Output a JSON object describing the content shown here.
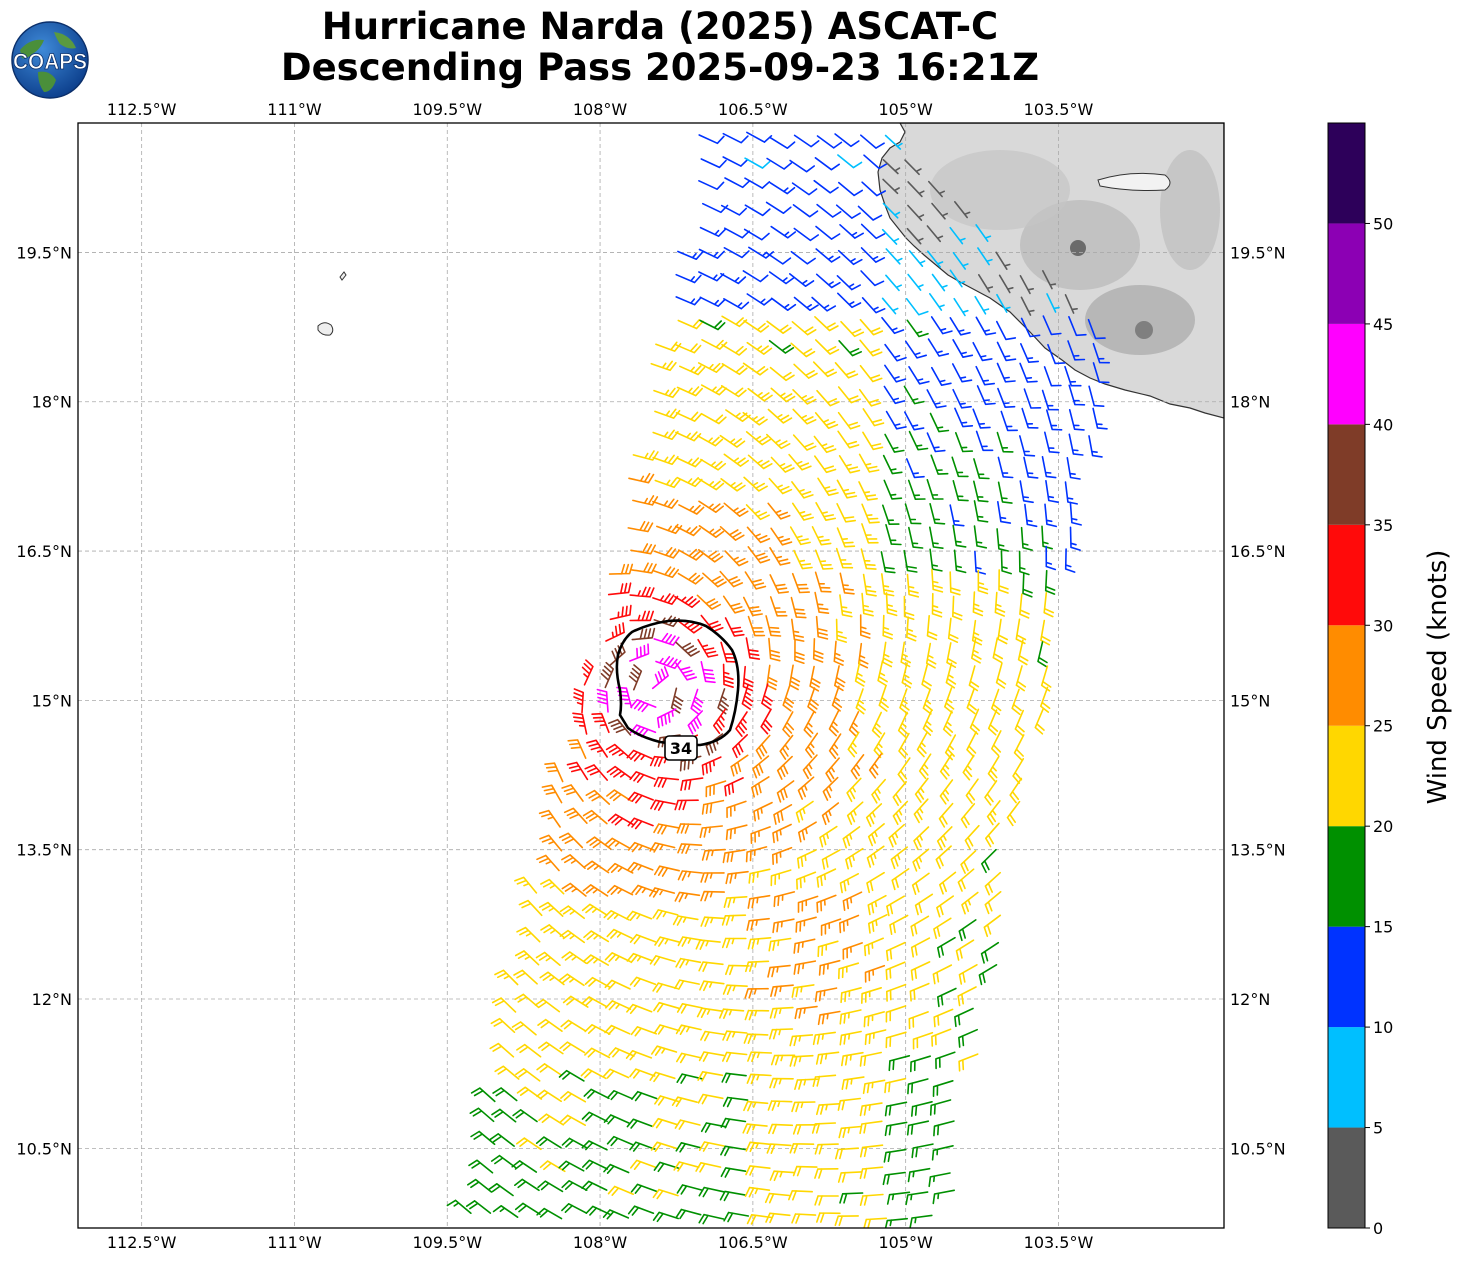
{
  "title": {
    "line1": "Hurricane Narda (2025) ASCAT-C",
    "line2": "Descending Pass 2025-09-23 16:21Z"
  },
  "logo": {
    "text": "COAPS",
    "icon": "globe-logo-icon"
  },
  "map": {
    "lon_range": [
      -113.125,
      -101.875
    ],
    "lat_range": [
      9.7,
      20.8
    ],
    "lon_ticks": [
      {
        "value": -112.5,
        "label": "112.5°W"
      },
      {
        "value": -111,
        "label": "111°W"
      },
      {
        "value": -109.5,
        "label": "109.5°W"
      },
      {
        "value": -108,
        "label": "108°W"
      },
      {
        "value": -106.5,
        "label": "106.5°W"
      },
      {
        "value": -105,
        "label": "105°W"
      },
      {
        "value": -103.5,
        "label": "103.5°W"
      }
    ],
    "lat_ticks": [
      {
        "value": 19.5,
        "label": "19.5°N"
      },
      {
        "value": 18,
        "label": "18°N"
      },
      {
        "value": 16.5,
        "label": "16.5°N"
      },
      {
        "value": 15,
        "label": "15°N"
      },
      {
        "value": 13.5,
        "label": "13.5°N"
      },
      {
        "value": 12,
        "label": "12°N"
      },
      {
        "value": 10.5,
        "label": "10.5°N"
      }
    ],
    "grid": "dashed",
    "storm_center": {
      "lon": -107.45,
      "lat": 15.1
    },
    "wind_radius_label": "34",
    "wind_radius_34kt_nm_approx": 65
  },
  "colorbar": {
    "label": "Wind Speed (knots)",
    "ticks": [
      "0",
      "5",
      "10",
      "15",
      "20",
      "25",
      "30",
      "35",
      "40",
      "45",
      "50"
    ],
    "bins": [
      {
        "min": 0,
        "max": 5,
        "color": "#5a5a5a"
      },
      {
        "min": 5,
        "max": 10,
        "color": "#00bfff"
      },
      {
        "min": 10,
        "max": 15,
        "color": "#0033ff"
      },
      {
        "min": 15,
        "max": 20,
        "color": "#009000"
      },
      {
        "min": 20,
        "max": 25,
        "color": "#ffd700"
      },
      {
        "min": 25,
        "max": 30,
        "color": "#ff8c00"
      },
      {
        "min": 30,
        "max": 35,
        "color": "#ff0a0a"
      },
      {
        "min": 35,
        "max": 40,
        "color": "#7f3c28"
      },
      {
        "min": 40,
        "max": 45,
        "color": "#ff00ff"
      },
      {
        "min": 45,
        "max": 50,
        "color": "#8c00b4"
      },
      {
        "min": 50,
        "max": 55,
        "color": "#2d005a"
      }
    ]
  }
}
